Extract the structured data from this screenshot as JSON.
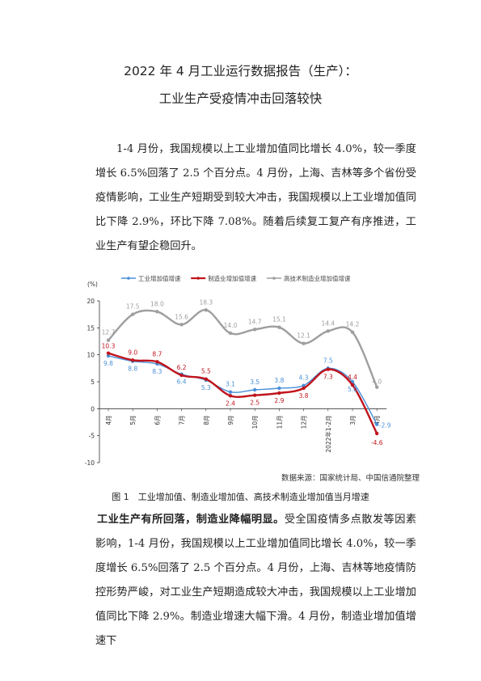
{
  "document": {
    "title_line1": "2022 年 4 月工业运行数据报告（生产）：",
    "title_line2": "工业生产受疫情冲击回落较快",
    "paragraph1": "1-4 月份，我国规模以上工业增加值同比增长 4.0%，较一季度增长 6.5%回落了 2.5 个百分点。4 月份，上海、吉林等多个省份受疫情影响，工业生产短期受到较大冲击，我国规模以上工业增加值同比下降 2.9%，环比下降 7.08%。随着后续复工复产有序推进，工业生产有望企稳回升。",
    "source": "数据来源：国家统计局、中国信通院整理",
    "caption": "图 1　工业增加值、制造业增加值、高技术制造业增加值当月增速",
    "paragraph2_bold": "工业生产有所回落，制造业降幅明显。",
    "paragraph2_rest": "受全国疫情多点散发等因素影响，1-4 月份，我国规模以上工业增加值同比增长 4.0%，较一季度增长 6.5%回落了 2.5 个百分点。4 月份，上海、吉林等地疫情防控形势严峻，对工业生产短期造成较大冲击，我国规模以上工业增加值同比下降 2.9%。制造业增速大幅下滑。4 月份，制造业增加值增速下"
  },
  "chart_data": {
    "type": "line",
    "ylabel": "(%)",
    "ylim": [
      -10,
      20
    ],
    "yticks": [
      -10,
      -5,
      0,
      5,
      10,
      15,
      20
    ],
    "grid": false,
    "legend_position": "top",
    "categories": [
      "4月",
      "5月",
      "6月",
      "7月",
      "8月",
      "9月",
      "10月",
      "11月",
      "12月",
      "2022年1-2月",
      "3月",
      "4月"
    ],
    "series": [
      {
        "name": "工业增加值增速",
        "color": "#4a90d9",
        "values": [
          9.8,
          8.8,
          8.3,
          6.4,
          5.3,
          3.1,
          3.5,
          3.8,
          4.3,
          7.5,
          5.0,
          -2.9
        ]
      },
      {
        "name": "制造业增加值增速",
        "color": "#c0141c",
        "values": [
          10.3,
          9.0,
          8.7,
          6.2,
          5.5,
          2.4,
          2.5,
          2.9,
          3.8,
          7.3,
          4.4,
          -4.6
        ]
      },
      {
        "name": "高技术制造业增加值增速",
        "color": "#9e9e9e",
        "values": [
          12.7,
          17.5,
          18.0,
          15.6,
          18.3,
          14.0,
          14.7,
          15.1,
          12.1,
          14.4,
          14.2,
          4.0
        ]
      }
    ]
  }
}
